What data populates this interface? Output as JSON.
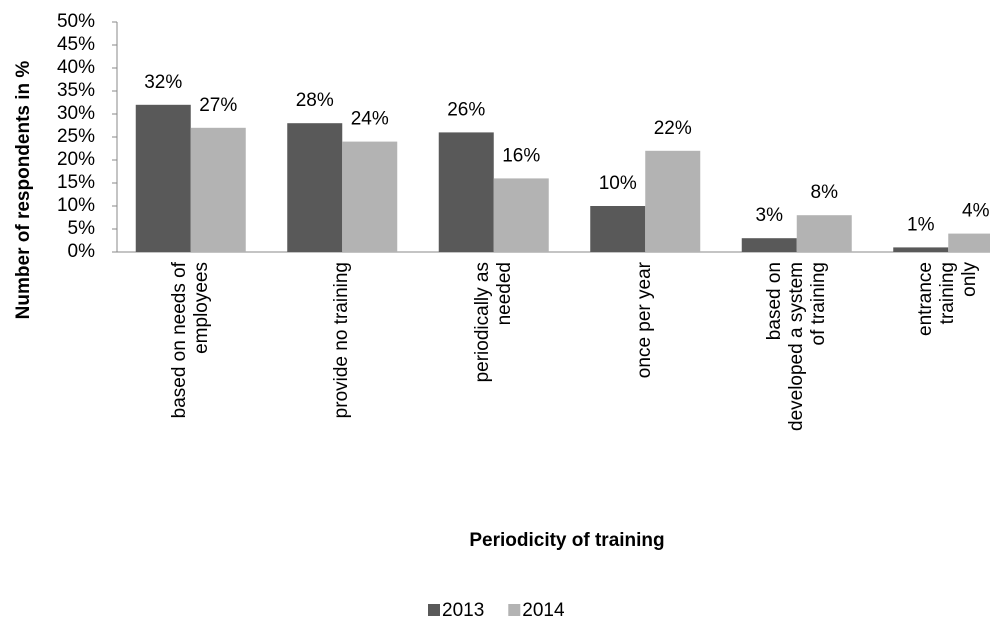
{
  "chart_data": {
    "type": "bar",
    "x_label": "Periodicity of training",
    "y_label": "Number of respondents in %",
    "categories": [
      "based on needs of\nemployees",
      "provide no training",
      "periodically as\nneeded",
      "once per year",
      "based on\ndeveloped a system\nof training",
      "entrance training\nonly"
    ],
    "series": [
      {
        "name": "2013",
        "color": "#595959",
        "values": [
          32,
          28,
          26,
          10,
          3,
          1
        ],
        "value_labels": [
          "32%",
          "28%",
          "26%",
          "10%",
          "3%",
          "1%"
        ]
      },
      {
        "name": "2014",
        "color": "#b3b3b3",
        "values": [
          27,
          24,
          16,
          22,
          8,
          4
        ],
        "value_labels": [
          "27%",
          "24%",
          "16%",
          "22%",
          "8%",
          "4%"
        ]
      }
    ],
    "ylim": [
      0,
      50
    ],
    "yticks": [
      {
        "value": 0,
        "label": "0%"
      },
      {
        "value": 5,
        "label": "5%"
      },
      {
        "value": 10,
        "label": "10%"
      },
      {
        "value": 15,
        "label": "15%"
      },
      {
        "value": 20,
        "label": "20%"
      },
      {
        "value": 25,
        "label": "25%"
      },
      {
        "value": 30,
        "label": "30%"
      },
      {
        "value": 35,
        "label": "35%"
      },
      {
        "value": 40,
        "label": "40%"
      },
      {
        "value": 45,
        "label": "45%"
      },
      {
        "value": 50,
        "label": "50%"
      }
    ],
    "legend": "bottom"
  }
}
